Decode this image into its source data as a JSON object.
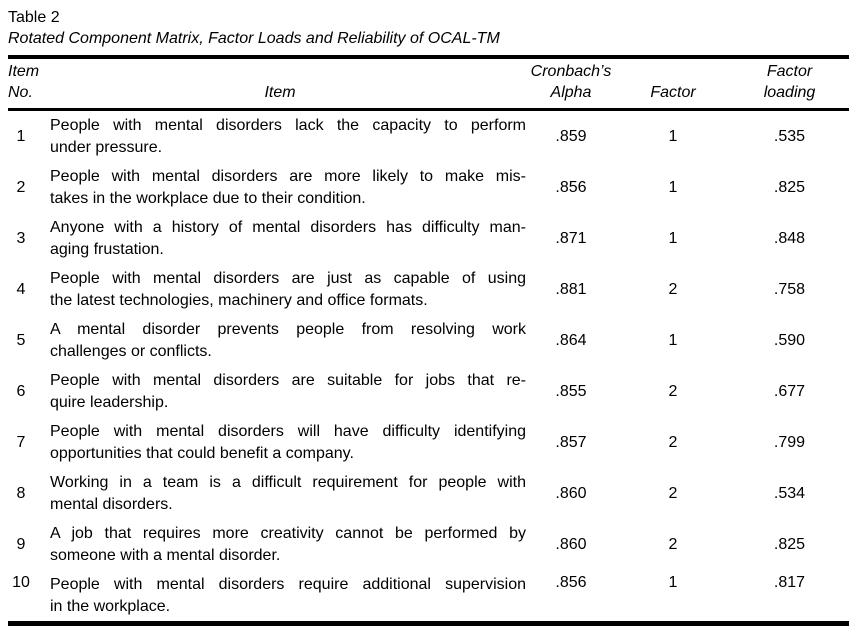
{
  "caption": {
    "label": "Table 2",
    "title": "Rotated Component Matrix, Factor Loads and Reliability of OCAL-TM"
  },
  "table": {
    "columns": [
      {
        "id": "item-no",
        "lines": [
          "Item",
          "No."
        ]
      },
      {
        "id": "item",
        "lines": [
          "Item"
        ]
      },
      {
        "id": "cronbachs-alpha",
        "lines": [
          "Cronbach’s",
          "Alpha"
        ]
      },
      {
        "id": "factor",
        "lines": [
          "Factor"
        ]
      },
      {
        "id": "factor-loading",
        "lines": [
          "Factor",
          "loading"
        ]
      }
    ],
    "rows": [
      {
        "no": "1",
        "item_lines": [
          "People with mental disorders lack the capacity to perform",
          "under pressure."
        ],
        "cronbachs_alpha": ".859",
        "factor": "1",
        "factor_loading": ".535"
      },
      {
        "no": "2",
        "item_lines": [
          "People with mental disorders are more likely to make mis-",
          "takes in the workplace due to their condition."
        ],
        "cronbachs_alpha": ".856",
        "factor": "1",
        "factor_loading": ".825"
      },
      {
        "no": "3",
        "item_lines": [
          "Anyone with a history of mental disorders has difficulty man-",
          "aging frustation."
        ],
        "cronbachs_alpha": ".871",
        "factor": "1",
        "factor_loading": ".848"
      },
      {
        "no": "4",
        "item_lines": [
          "People with mental disorders are just as capable of using",
          "the latest technologies, machinery and office formats."
        ],
        "cronbachs_alpha": ".881",
        "factor": "2",
        "factor_loading": ".758"
      },
      {
        "no": "5",
        "item_lines": [
          "A mental disorder prevents people from resolving work",
          "challenges or conflicts."
        ],
        "cronbachs_alpha": ".864",
        "factor": "1",
        "factor_loading": ".590"
      },
      {
        "no": "6",
        "item_lines": [
          "People with mental disorders are suitable for jobs that re-",
          "quire leadership."
        ],
        "cronbachs_alpha": ".855",
        "factor": "2",
        "factor_loading": ".677"
      },
      {
        "no": "7",
        "item_lines": [
          "People with mental disorders will have difficulty identifying",
          "opportunities that could benefit a company."
        ],
        "cronbachs_alpha": ".857",
        "factor": "2",
        "factor_loading": ".799"
      },
      {
        "no": "8",
        "item_lines": [
          "Working in a team is a difficult requirement for people with",
          "mental disorders."
        ],
        "cronbachs_alpha": ".860",
        "factor": "2",
        "factor_loading": ".534"
      },
      {
        "no": "9",
        "item_lines": [
          "A job that requires more creativity cannot be performed by",
          "someone with a mental disorder."
        ],
        "cronbachs_alpha": ".860",
        "factor": "2",
        "factor_loading": ".825"
      },
      {
        "no": "10",
        "item_lines": [
          "People with mental disorders require additional supervision",
          "in the workplace."
        ],
        "cronbachs_alpha": ".856",
        "factor": "1",
        "factor_loading": ".817",
        "valign": "top"
      }
    ]
  },
  "colors": {
    "text": "#000000",
    "background": "#ffffff",
    "border": "#000000"
  }
}
